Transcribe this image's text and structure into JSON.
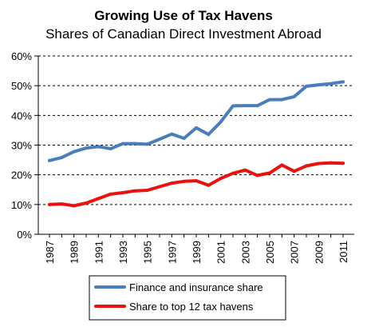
{
  "chart_data": {
    "type": "line",
    "title": "Growing Use of Tax Havens",
    "subtitle": "Shares of Canadian Direct Investment Abroad",
    "xlabel": "",
    "ylabel": "",
    "ylim": [
      0,
      60
    ],
    "y_ticks": [
      "0%",
      "10%",
      "20%",
      "30%",
      "40%",
      "50%",
      "60%"
    ],
    "x_tick_labels": [
      "1987",
      "1989",
      "1991",
      "1993",
      "1995",
      "1997",
      "1999",
      "2001",
      "2003",
      "2005",
      "2007",
      "2009",
      "2011"
    ],
    "grid": "horizontal dashed",
    "legend_position": "bottom",
    "x": [
      1987,
      1988,
      1989,
      1990,
      1991,
      1992,
      1993,
      1994,
      1995,
      1996,
      1997,
      1998,
      1999,
      2000,
      2001,
      2002,
      2003,
      2004,
      2005,
      2006,
      2007,
      2008,
      2009,
      2010,
      2011
    ],
    "series": [
      {
        "name": "Finance and insurance share",
        "color": "#4a7ebb",
        "values": [
          24.8,
          25.8,
          27.8,
          29.0,
          29.5,
          28.8,
          30.5,
          30.5,
          30.3,
          32.0,
          33.7,
          32.3,
          35.8,
          33.6,
          37.8,
          43.2,
          43.3,
          43.3,
          45.3,
          45.3,
          46.3,
          49.8,
          50.3,
          50.7,
          51.3
        ]
      },
      {
        "name": "Share to top 12 tax havens",
        "color": "#e8120f",
        "values": [
          10.0,
          10.2,
          9.6,
          10.5,
          12.0,
          13.5,
          14.0,
          14.6,
          14.8,
          16.0,
          17.2,
          17.8,
          18.0,
          16.5,
          18.8,
          20.5,
          21.6,
          19.8,
          20.6,
          23.3,
          21.2,
          23.0,
          23.8,
          24.0,
          23.9
        ]
      }
    ]
  }
}
